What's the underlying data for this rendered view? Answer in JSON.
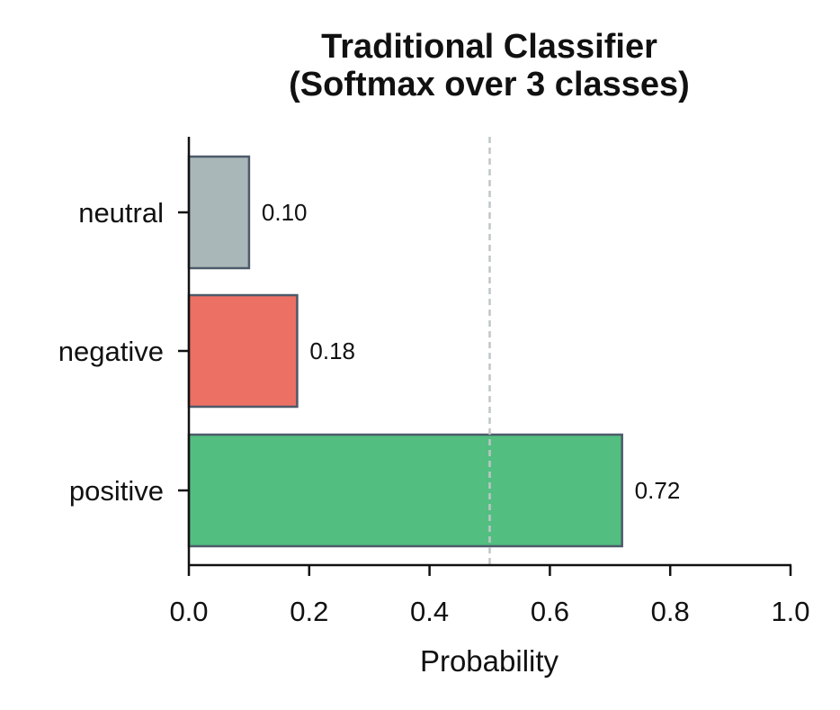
{
  "chart_data": {
    "type": "bar",
    "orientation": "horizontal",
    "title": "Traditional Classifier\n(Softmax over 3 classes)",
    "xlabel": "Probability",
    "ylabel": "",
    "categories": [
      "positive",
      "negative",
      "neutral"
    ],
    "values": [
      0.72,
      0.18,
      0.1
    ],
    "value_labels": [
      "0.72",
      "0.18",
      "0.10"
    ],
    "colors": [
      "#52be80",
      "#ec7063",
      "#aab7b8"
    ],
    "edge_color": "#4d5a6a",
    "xlim": [
      0.0,
      1.0
    ],
    "xticks": [
      0.0,
      0.2,
      0.4,
      0.6,
      0.8,
      1.0
    ],
    "xtick_labels": [
      "0.0",
      "0.2",
      "0.4",
      "0.6",
      "0.8",
      "1.0"
    ],
    "reference_line": {
      "x": 0.5,
      "style": "dashed",
      "color": "#bfc5c8"
    },
    "grid": false,
    "legend": "none"
  }
}
